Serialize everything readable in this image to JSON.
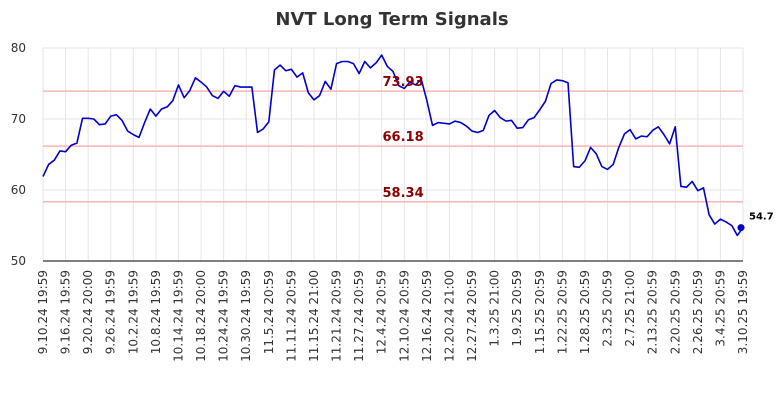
{
  "chart_data": {
    "type": "line",
    "title": "NVT Long Term Signals",
    "ylim": [
      50,
      80
    ],
    "yticks": [
      50,
      60,
      70,
      80
    ],
    "xtick_labels": [
      "9.10.24 19:59",
      "9.16.24 19:59",
      "9.20.24 20:00",
      "9.26.24 19:59",
      "10.2.24 19:59",
      "10.8.24 19:59",
      "10.14.24 19:59",
      "10.18.24 20:00",
      "10.24.24 19:59",
      "10.30.24 19:59",
      "11.5.24 20:59",
      "11.11.24 20:59",
      "11.15.24 21:00",
      "11.21.24 20:59",
      "11.27.24 20:59",
      "12.4.24 20:59",
      "12.10.24 20:59",
      "12.16.24 20:59",
      "12.20.24 21:00",
      "12.27.24 20:59",
      "1.3.25 21:00",
      "1.9.25 20:59",
      "1.15.25 20:59",
      "1.22.25 20:59",
      "1.28.25 20:59",
      "2.3.25 20:59",
      "2.7.25 21:00",
      "2.13.25 20:59",
      "2.20.25 20:59",
      "2.26.25 20:59",
      "3.4.25 20:59",
      "3.10.25 19:59"
    ],
    "grid": true,
    "series": [
      {
        "color": "#0000cc",
        "values": [
          61.9,
          63.6,
          64.2,
          65.5,
          65.4,
          66.3,
          66.6,
          70.1,
          70.1,
          70.0,
          69.2,
          69.3,
          70.4,
          70.6,
          69.8,
          68.3,
          67.8,
          67.4,
          69.5,
          71.4,
          70.4,
          71.4,
          71.7,
          72.6,
          74.8,
          73.0,
          74.0,
          75.8,
          75.2,
          74.5,
          73.3,
          72.9,
          73.9,
          73.2,
          74.7,
          74.5,
          74.5,
          74.5,
          68.1,
          68.6,
          69.6,
          76.9,
          77.6,
          76.8,
          77.0,
          75.9,
          76.5,
          73.7,
          72.7,
          73.3,
          75.3,
          74.2,
          77.8,
          78.1,
          78.1,
          77.8,
          76.4,
          78.1,
          77.2,
          77.9,
          79.0,
          77.4,
          76.7,
          74.7,
          74.3,
          75.2,
          74.8,
          75.6,
          72.6,
          69.1,
          69.5,
          69.4,
          69.3,
          69.7,
          69.5,
          69.0,
          68.3,
          68.1,
          68.4,
          70.5,
          71.2,
          70.2,
          69.7,
          69.8,
          68.7,
          68.8,
          69.9,
          70.2,
          71.3,
          72.5,
          75.0,
          75.5,
          75.4,
          75.1,
          63.3,
          63.2,
          64.1,
          66.0,
          65.1,
          63.3,
          62.9,
          63.6,
          66.0,
          67.9,
          68.5,
          67.2,
          67.6,
          67.5,
          68.4,
          68.9,
          67.8,
          66.5,
          68.9,
          60.5,
          60.4,
          61.2,
          59.9,
          60.3,
          56.5,
          55.2,
          55.9,
          55.5,
          55.0,
          53.6,
          54.7
        ]
      }
    ],
    "levels": [
      {
        "value": 73.93,
        "label": "73.93",
        "color": "#ffb3b3"
      },
      {
        "value": 66.18,
        "label": "66.18",
        "color": "#ffb3b3"
      },
      {
        "value": 58.34,
        "label": "58.34",
        "color": "#ffb3b3"
      }
    ],
    "last_value_label": "54.7",
    "level_label_color": "#8b0000"
  }
}
